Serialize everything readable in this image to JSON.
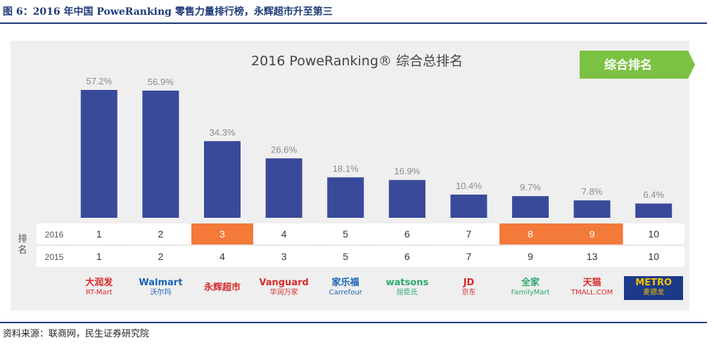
{
  "figure_title": "图 6：2016 年中国 PoweRanking 零售力量排行榜，永辉超市升至第三",
  "source": "资料来源：联商网，民生证券研究院",
  "badge_label": "综合排名",
  "row_group_label": "排名",
  "colors": {
    "bar": "#3a4a9a",
    "highlight": "#f47a3a",
    "badge": "#7cc242",
    "panel": "#efefef",
    "rule": "#1f3a7a"
  },
  "chart_data": {
    "type": "bar",
    "title": "2016 PoweRanking® 综合总排名",
    "categories": [
      "大润发 RT-Mart",
      "Walmart 沃尔玛",
      "永辉超市",
      "Vanguard 华润万家",
      "家乐福 Carrefour",
      "watsons 屈臣氏",
      "JD.COM 京东",
      "全家 FamilyMart",
      "天猫 TMALL.COM",
      "METRO 麦德龙"
    ],
    "values": [
      57.2,
      56.9,
      34.3,
      26.6,
      18.1,
      16.9,
      10.4,
      9.7,
      7.8,
      6.4
    ],
    "value_labels": [
      "57.2%",
      "56.9%",
      "34.3%",
      "26.6%",
      "18.1%",
      "16.9%",
      "10.4%",
      "9.7%",
      "7.8%",
      "6.4%"
    ],
    "ylim": [
      0,
      60
    ],
    "grid": false,
    "rank_table": {
      "rows": [
        {
          "year": "2016",
          "ranks": [
            "1",
            "2",
            "3",
            "4",
            "5",
            "6",
            "7",
            "8",
            "9",
            "10"
          ],
          "highlighted": [
            2,
            7,
            8
          ]
        },
        {
          "year": "2015",
          "ranks": [
            "1",
            "2",
            "4",
            "3",
            "5",
            "6",
            "7",
            "9",
            "13",
            "10"
          ],
          "highlighted": []
        }
      ]
    }
  },
  "logos": [
    {
      "text": "大润发",
      "sub": "RT-Mart",
      "color": "#d62b2b"
    },
    {
      "text": "Walmart",
      "sub": "沃尔玛",
      "color": "#1a63b5"
    },
    {
      "text": "永辉超市",
      "sub": "",
      "color": "#d62b2b"
    },
    {
      "text": "Vanguard",
      "sub": "华润万家",
      "color": "#d62b2b"
    },
    {
      "text": "家乐福",
      "sub": "Carrefour",
      "color": "#1a63b5"
    },
    {
      "text": "watsons",
      "sub": "屈臣氏",
      "color": "#2aa96e"
    },
    {
      "text": "JD",
      "sub": "京东",
      "color": "#d62b2b"
    },
    {
      "text": "全家",
      "sub": "FamilyMart",
      "color": "#2aa96e"
    },
    {
      "text": "天猫",
      "sub": "TMALL.COM",
      "color": "#d62b2b"
    },
    {
      "text": "METRO",
      "sub": "麦德龙",
      "color": "#f2c200"
    }
  ]
}
